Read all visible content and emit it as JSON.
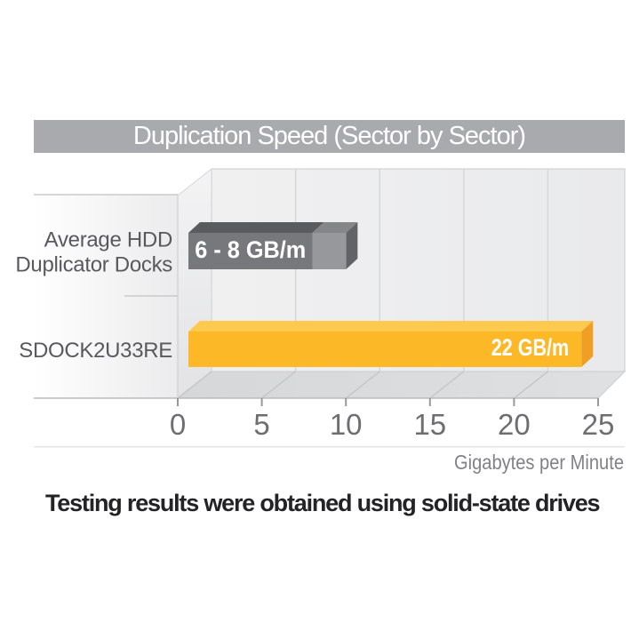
{
  "title_bar": {
    "title": "Duplication Speed (Sector by Sector)"
  },
  "caption": "Testing results were obtained using solid-state drives",
  "colors": {
    "title_bar_bg": "#a8aaad",
    "title_text": "#ffffff",
    "caption_text": "#222325",
    "axis_text": "#6d6e71",
    "axis_unit_text": "#808285",
    "category_text": "#58595b",
    "wall_bg": "#ededee",
    "gridline": "#d6d7d9",
    "edge": "#c7c8ca",
    "bar_label_text": "#ffffff"
  },
  "chart_data": {
    "type": "bar",
    "orientation": "horizontal",
    "style": "3d",
    "title": "Duplication Speed (Sector by Sector)",
    "xlabel": "Gigabytes per Minute",
    "units": "GB/m",
    "xlim": [
      0,
      25
    ],
    "xticks": [
      0,
      5,
      10,
      15,
      20,
      25
    ],
    "grid": "vertical",
    "legend": "none",
    "rows": [
      {
        "category": "Average HDD Duplicator Docks",
        "category_lines": [
          "Average HDD",
          "Duplicator Docks"
        ],
        "value_min": 6,
        "value_max": 8,
        "value_label": "6 - 8 GB/m",
        "bar_colors": {
          "front": "#77787b",
          "top": "#5a5b5e",
          "front_range": "#97989b",
          "top_range": "#85868a",
          "cap": "#626366"
        }
      },
      {
        "category": "SDOCK2U33RE",
        "category_lines": [
          "SDOCK2U33RE"
        ],
        "value": 22,
        "value_label": "22 GB/m",
        "bar_colors": {
          "front": "#fdb827",
          "top": "#fdc94e",
          "cap": "#f09e24"
        }
      }
    ]
  }
}
